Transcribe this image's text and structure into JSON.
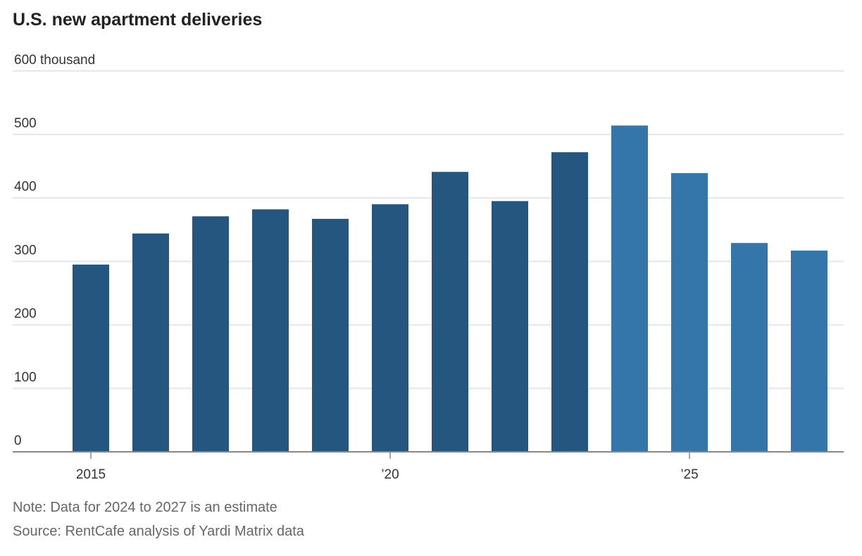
{
  "chart_data": {
    "type": "bar",
    "title": "U.S. new apartment deliveries",
    "xlabel": "",
    "ylabel": "",
    "ylim": [
      0,
      600
    ],
    "y_ticks": [
      0,
      100,
      200,
      300,
      400,
      500,
      600
    ],
    "y_tick_labels": [
      "0",
      "100",
      "200",
      "300",
      "400",
      "500",
      "600 thousand"
    ],
    "categories": [
      "2015",
      "2016",
      "2017",
      "2018",
      "2019",
      "2020",
      "2021",
      "2022",
      "2023",
      "2024",
      "2025",
      "2026",
      "2027"
    ],
    "x_tick_labels": [
      {
        "index": 0,
        "label": "2015"
      },
      {
        "index": 5,
        "label": "’20"
      },
      {
        "index": 10,
        "label": "’25"
      }
    ],
    "values": [
      295,
      344,
      371,
      382,
      367,
      390,
      441,
      395,
      472,
      514,
      439,
      329,
      317
    ],
    "estimate": [
      false,
      false,
      false,
      false,
      false,
      false,
      false,
      false,
      false,
      true,
      true,
      true,
      true
    ],
    "grid": true,
    "colors": {
      "actual": "#24567f",
      "estimate": "#3476aa",
      "grid": "#e6e6e6",
      "axis": "#888888"
    }
  },
  "footer": {
    "note": "Note: Data for 2024 to 2027 is an estimate",
    "source": "Source: RentCafe analysis of Yardi Matrix data"
  }
}
